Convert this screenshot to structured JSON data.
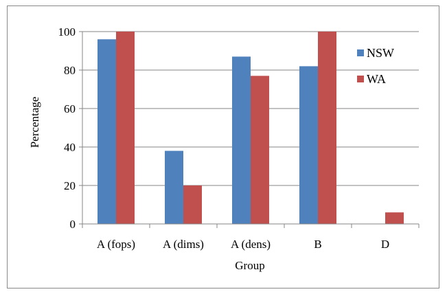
{
  "chart_data": {
    "type": "bar",
    "title": "",
    "xlabel": "Group",
    "ylabel": "Percentage",
    "categories": [
      "A (fops)",
      "A (dims)",
      "A (dens)",
      "B",
      "D"
    ],
    "series": [
      {
        "name": "NSW",
        "color": "#4f81bd",
        "values": [
          96,
          38,
          87,
          82,
          0
        ]
      },
      {
        "name": "WA",
        "color": "#c0504d",
        "values": [
          100,
          20,
          77,
          100,
          6
        ]
      }
    ],
    "ylim": [
      0,
      100
    ],
    "yticks": [
      0,
      20,
      40,
      60,
      80,
      100
    ],
    "grid": true,
    "legend": "right"
  }
}
